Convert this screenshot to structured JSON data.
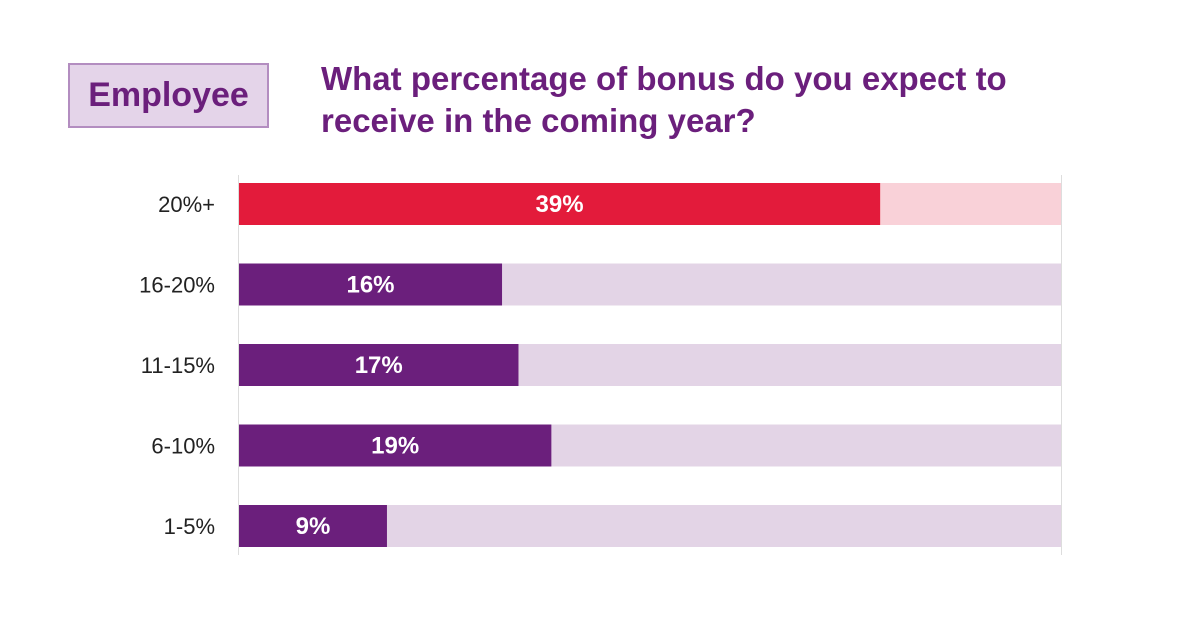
{
  "badge": {
    "label": "Employee"
  },
  "title": "What percentage of bonus do you expect to receive in the coming year?",
  "colors": {
    "accent": "#e31b3b",
    "accent_track": "#f9d1d8",
    "primary": "#6b1f7c",
    "primary_track": "#e3d4e6",
    "axis": "#dddddd"
  },
  "chart_data": {
    "type": "bar",
    "orientation": "horizontal",
    "title": "What percentage of bonus do you expect to receive in the coming year?",
    "categories": [
      "20%+",
      "16-20%",
      "11-15%",
      "6-10%",
      "1-5%"
    ],
    "values": [
      39,
      16,
      17,
      19,
      9
    ],
    "value_labels": [
      "39%",
      "16%",
      "17%",
      "19%",
      "9%"
    ],
    "highlight_index": 0,
    "xlim": [
      0,
      50
    ],
    "grid": false,
    "legend": "none"
  }
}
